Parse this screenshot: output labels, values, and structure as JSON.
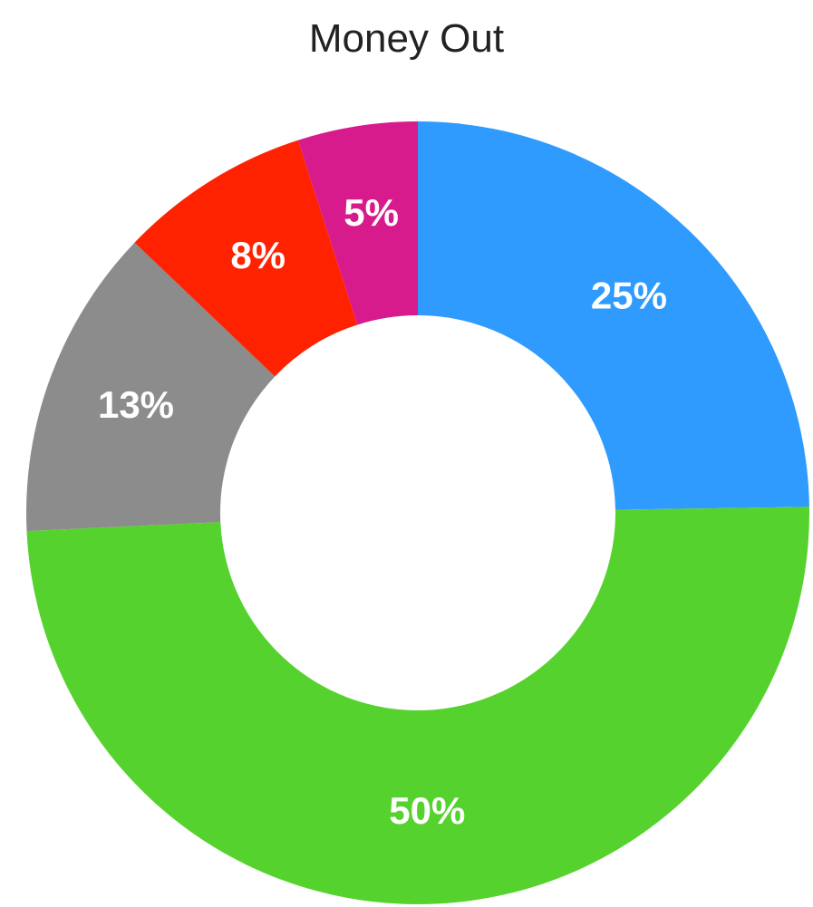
{
  "chart_data": {
    "type": "pie",
    "variant": "donut",
    "title": "Money Out",
    "slices": [
      {
        "value": 25,
        "label": "25%",
        "color": "#2f9bff"
      },
      {
        "value": 50,
        "label": "50%",
        "color": "#56d22e"
      },
      {
        "value": 13,
        "label": "13%",
        "color": "#8c8c8c"
      },
      {
        "value": 8,
        "label": "8%",
        "color": "#ff2200"
      },
      {
        "value": 5,
        "label": "5%",
        "color": "#d81b8c"
      }
    ],
    "start_angle": "12 o'clock",
    "direction": "clockwise",
    "legend": "none"
  }
}
